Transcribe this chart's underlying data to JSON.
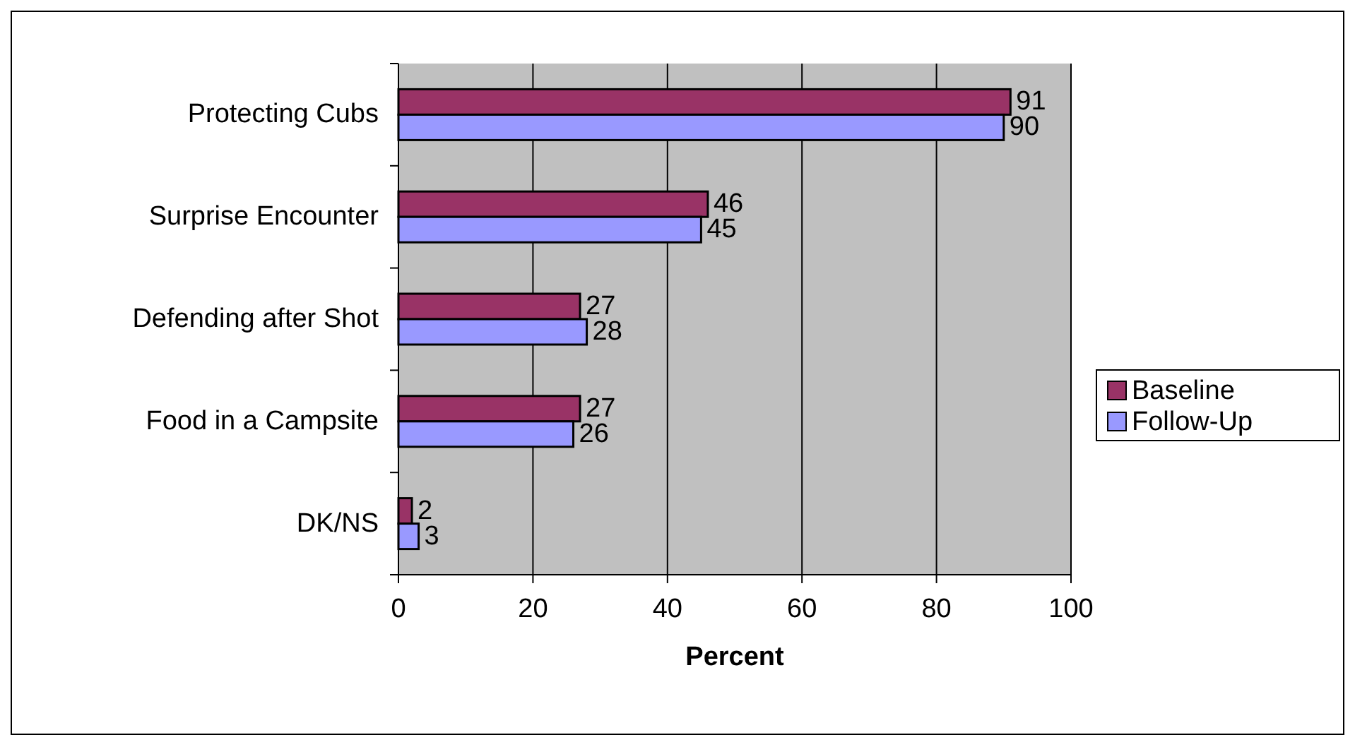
{
  "chart_data": {
    "type": "bar",
    "orientation": "horizontal",
    "xlabel": "Percent",
    "categories": [
      "Protecting Cubs",
      "Surprise Encounter",
      "Defending after Shot",
      "Food in a Campsite",
      "DK/NS"
    ],
    "series": [
      {
        "name": "Baseline",
        "color": "#993366",
        "values": [
          91,
          46,
          27,
          27,
          2
        ]
      },
      {
        "name": "Follow-Up",
        "color": "#9999ff",
        "values": [
          90,
          45,
          28,
          26,
          3
        ]
      }
    ],
    "xlim": [
      0,
      100
    ],
    "xticks": [
      0,
      20,
      40,
      60,
      80,
      100
    ],
    "grid": "x",
    "legend": "right",
    "data_labels": true
  }
}
